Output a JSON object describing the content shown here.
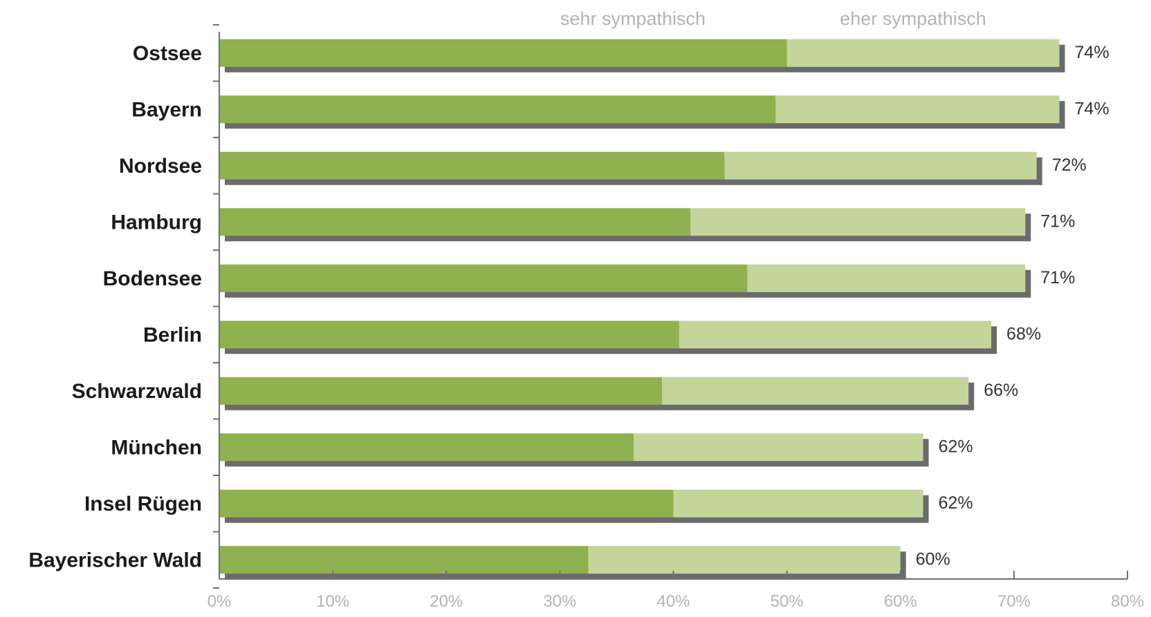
{
  "chart_data": {
    "type": "bar",
    "orientation": "horizontal",
    "stacked": true,
    "categories": [
      "Ostsee",
      "Bayern",
      "Nordsee",
      "Hamburg",
      "Bodensee",
      "Berlin",
      "Schwarzwald",
      "München",
      "Insel Rügen",
      "Bayerischer Wald"
    ],
    "series": [
      {
        "name": "sehr sympathisch",
        "values": [
          50,
          49,
          44.5,
          41.5,
          46.5,
          40.5,
          39,
          36.5,
          40,
          32.5
        ]
      },
      {
        "name": "eher sympathisch",
        "values": [
          24,
          25,
          27.5,
          29.5,
          24.5,
          27.5,
          27,
          25.5,
          22,
          27.5
        ]
      }
    ],
    "total_labels": [
      "74%",
      "74%",
      "72%",
      "71%",
      "71%",
      "68%",
      "66%",
      "62%",
      "62%",
      "60%"
    ],
    "x_ticks": [
      "0%",
      "10%",
      "20%",
      "30%",
      "40%",
      "50%",
      "60%",
      "70%",
      "80%"
    ],
    "xlim": [
      0,
      80
    ],
    "legend_position": "top",
    "grid": false,
    "colors": {
      "sehr sympathisch": "#8fb14f",
      "eher sympathisch": "#c4d59b",
      "shadow": "#6b6b6b",
      "axis": "#6f6f6f"
    }
  }
}
